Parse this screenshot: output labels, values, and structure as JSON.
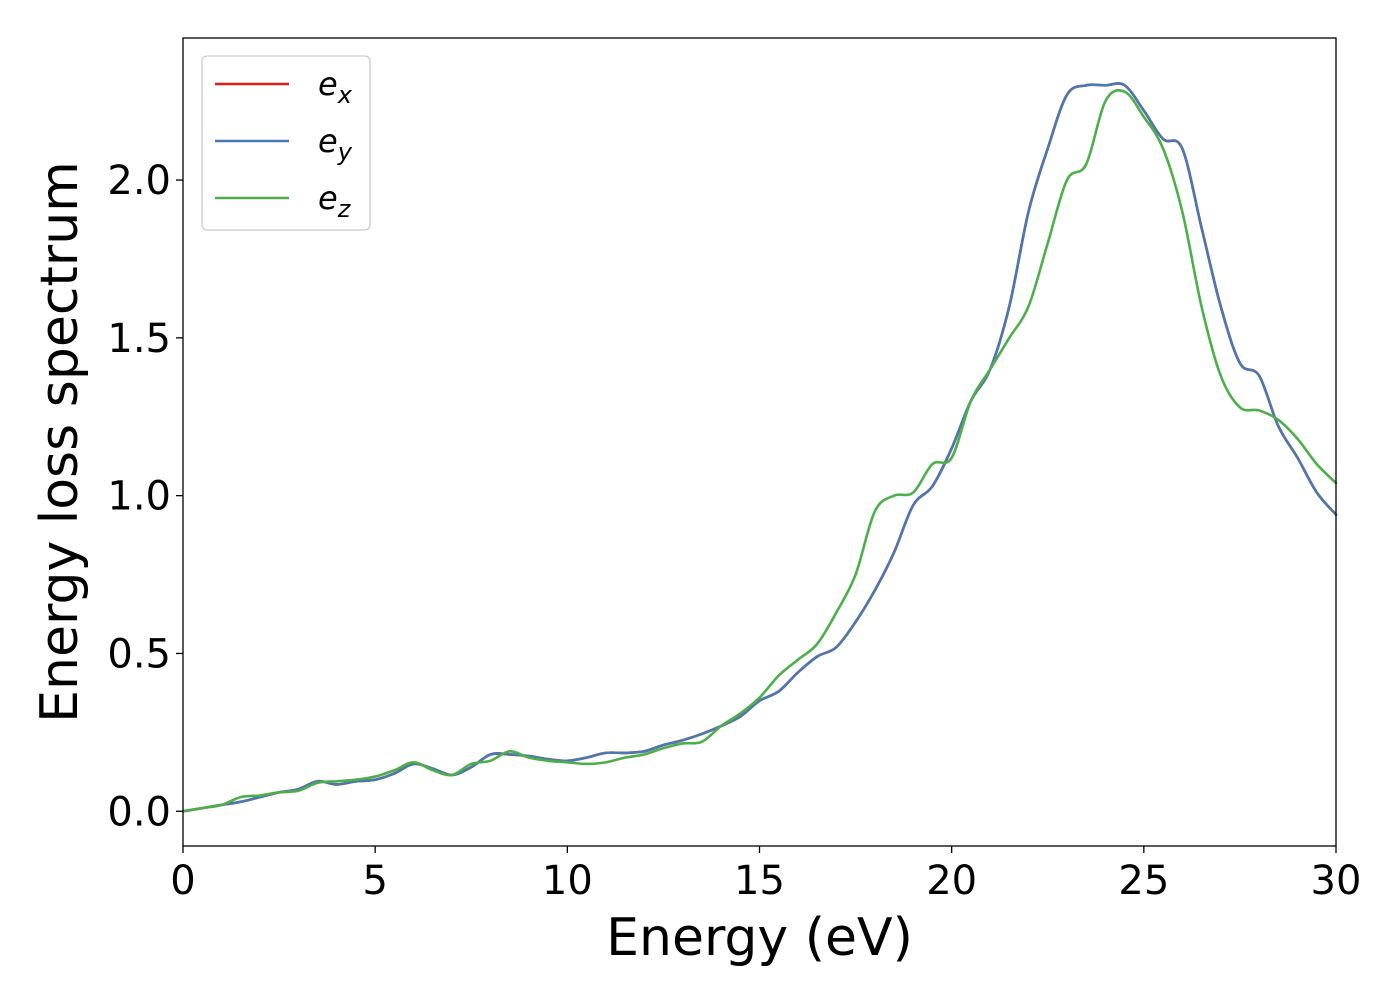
{
  "chart_data": {
    "type": "line",
    "xlabel": "Energy (eV)",
    "ylabel": "Energy loss spectrum",
    "xlim": [
      0,
      30
    ],
    "ylim": [
      -0.11,
      2.45
    ],
    "xticks": [
      0,
      5,
      10,
      15,
      20,
      25,
      30
    ],
    "xtick_labels": [
      "0",
      "5",
      "10",
      "15",
      "20",
      "25",
      "30"
    ],
    "yticks": [
      0.0,
      0.5,
      1.0,
      1.5,
      2.0
    ],
    "ytick_labels": [
      "0.0",
      "0.5",
      "1.0",
      "1.5",
      "2.0"
    ],
    "grid": false,
    "legend_position": "top-left",
    "x": [
      0,
      0.5,
      1,
      1.5,
      2,
      2.5,
      3,
      3.5,
      4,
      4.5,
      5,
      5.5,
      6,
      6.5,
      7,
      7.5,
      8,
      8.5,
      9,
      9.5,
      10,
      10.5,
      11,
      11.5,
      12,
      12.5,
      13,
      13.5,
      14,
      14.5,
      15,
      15.5,
      16,
      16.5,
      17,
      17.5,
      18,
      18.5,
      19,
      19.5,
      20,
      20.5,
      21,
      21.5,
      22,
      22.5,
      23,
      23.5,
      24,
      24.5,
      25,
      25.5,
      26,
      26.5,
      27,
      27.5,
      28,
      28.5,
      29,
      29.5,
      30
    ],
    "series": [
      {
        "name": "e",
        "subscript": "x",
        "color": "#e41a1c",
        "values": [
          0.0,
          0.01,
          0.02,
          0.03,
          0.045,
          0.06,
          0.07,
          0.095,
          0.085,
          0.095,
          0.1,
          0.12,
          0.15,
          0.135,
          0.115,
          0.14,
          0.18,
          0.18,
          0.175,
          0.165,
          0.16,
          0.17,
          0.185,
          0.185,
          0.19,
          0.21,
          0.225,
          0.245,
          0.27,
          0.3,
          0.35,
          0.38,
          0.44,
          0.49,
          0.52,
          0.6,
          0.7,
          0.82,
          0.97,
          1.03,
          1.15,
          1.3,
          1.4,
          1.6,
          1.9,
          2.1,
          2.27,
          2.3,
          2.3,
          2.3,
          2.22,
          2.13,
          2.1,
          1.85,
          1.6,
          1.42,
          1.38,
          1.22,
          1.12,
          1.01,
          0.94
        ]
      },
      {
        "name": "e",
        "subscript": "y",
        "color": "#4a78b0",
        "values": [
          0.0,
          0.01,
          0.02,
          0.03,
          0.045,
          0.06,
          0.07,
          0.095,
          0.085,
          0.095,
          0.1,
          0.12,
          0.15,
          0.135,
          0.115,
          0.14,
          0.18,
          0.18,
          0.175,
          0.165,
          0.16,
          0.17,
          0.185,
          0.185,
          0.19,
          0.21,
          0.225,
          0.245,
          0.27,
          0.3,
          0.35,
          0.38,
          0.44,
          0.49,
          0.52,
          0.6,
          0.7,
          0.82,
          0.97,
          1.03,
          1.15,
          1.3,
          1.4,
          1.6,
          1.9,
          2.1,
          2.27,
          2.3,
          2.3,
          2.3,
          2.22,
          2.13,
          2.1,
          1.85,
          1.6,
          1.42,
          1.38,
          1.22,
          1.12,
          1.01,
          0.94
        ]
      },
      {
        "name": "e",
        "subscript": "z",
        "color": "#4daf4a",
        "values": [
          0.0,
          0.01,
          0.02,
          0.045,
          0.05,
          0.06,
          0.065,
          0.09,
          0.095,
          0.1,
          0.11,
          0.13,
          0.155,
          0.13,
          0.115,
          0.15,
          0.16,
          0.19,
          0.17,
          0.16,
          0.155,
          0.15,
          0.155,
          0.17,
          0.18,
          0.2,
          0.215,
          0.22,
          0.27,
          0.31,
          0.36,
          0.43,
          0.48,
          0.53,
          0.63,
          0.75,
          0.95,
          1.0,
          1.01,
          1.1,
          1.12,
          1.3,
          1.4,
          1.5,
          1.6,
          1.8,
          2.0,
          2.05,
          2.25,
          2.28,
          2.2,
          2.1,
          1.9,
          1.6,
          1.38,
          1.28,
          1.27,
          1.24,
          1.18,
          1.1,
          1.04
        ]
      }
    ]
  }
}
